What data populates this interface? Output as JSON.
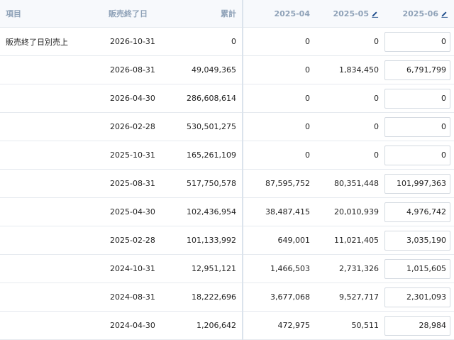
{
  "headers": {
    "item": "項目",
    "end_date": "販売終了日",
    "total": "累計",
    "m1": "2025-04",
    "m2": "2025-05",
    "m3": "2025-06"
  },
  "row_group_label": "販売終了日別売上",
  "rows": [
    {
      "date": "2026-10-31",
      "total": "0",
      "m1": "0",
      "m2": "0",
      "m3": "0"
    },
    {
      "date": "2026-08-31",
      "total": "49,049,365",
      "m1": "0",
      "m2": "1,834,450",
      "m3": "6,791,799"
    },
    {
      "date": "2026-04-30",
      "total": "286,608,614",
      "m1": "0",
      "m2": "0",
      "m3": "0"
    },
    {
      "date": "2026-02-28",
      "total": "530,501,275",
      "m1": "0",
      "m2": "0",
      "m3": "0"
    },
    {
      "date": "2025-10-31",
      "total": "165,261,109",
      "m1": "0",
      "m2": "0",
      "m3": "0"
    },
    {
      "date": "2025-08-31",
      "total": "517,750,578",
      "m1": "87,595,752",
      "m2": "80,351,448",
      "m3": "101,997,363"
    },
    {
      "date": "2025-04-30",
      "total": "102,436,954",
      "m1": "38,487,415",
      "m2": "20,010,939",
      "m3": "4,976,742"
    },
    {
      "date": "2025-02-28",
      "total": "101,133,992",
      "m1": "649,001",
      "m2": "11,021,405",
      "m3": "3,035,190"
    },
    {
      "date": "2024-10-31",
      "total": "12,951,121",
      "m1": "1,466,503",
      "m2": "2,731,326",
      "m3": "1,015,605"
    },
    {
      "date": "2024-08-31",
      "total": "18,222,696",
      "m1": "3,677,068",
      "m2": "9,527,717",
      "m3": "2,301,093"
    },
    {
      "date": "2024-04-30",
      "total": "1,206,642",
      "m1": "472,975",
      "m2": "50,511",
      "m3": "28,984"
    }
  ],
  "icons": {
    "edit": "pencil-icon"
  },
  "colors": {
    "header_text": "#8fa2b8",
    "header_bg": "#f7f9fc",
    "edit_icon": "#1f4e8c"
  }
}
